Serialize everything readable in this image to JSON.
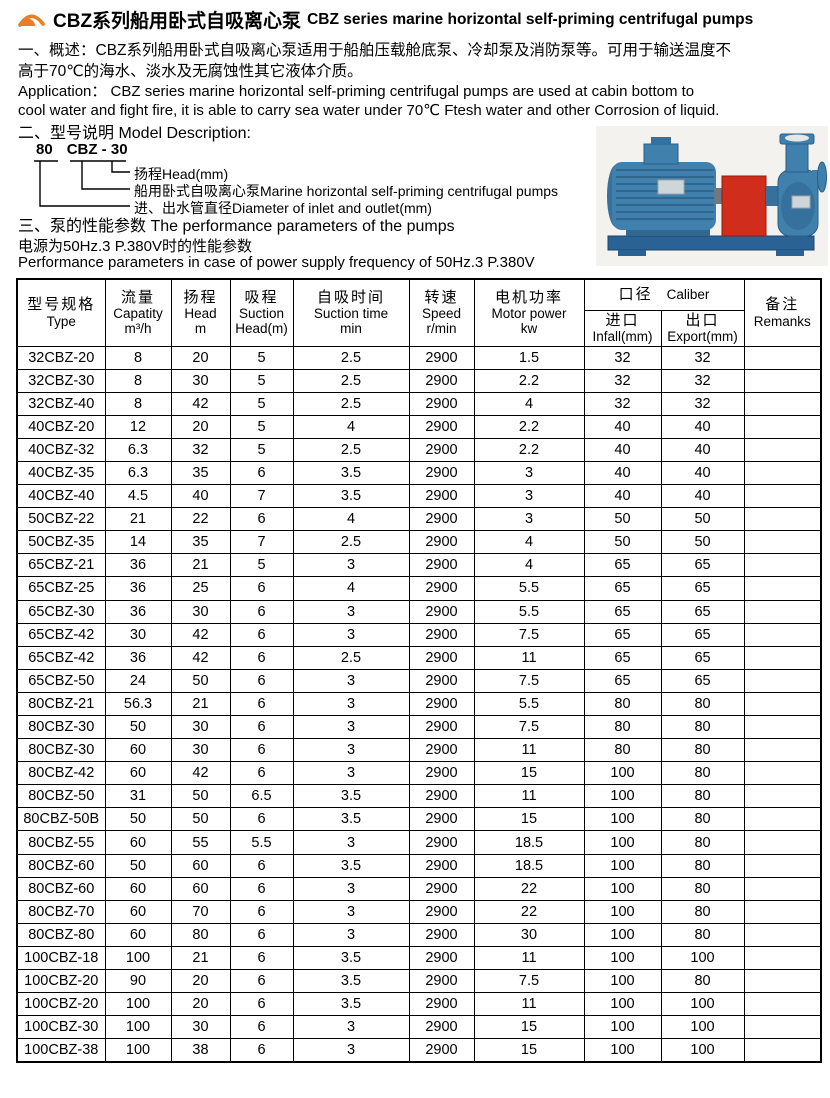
{
  "header": {
    "title_zh": "CBZ系列船用卧式自吸离心泵",
    "title_en": "CBZ series marine horizontal self-priming centrifugal pumps",
    "brand_color": "#e87e26"
  },
  "overview": {
    "zh": "一、概述：CBZ系列船用卧式自吸离心泵适用于船舶压载舱底泵、冷却泵及消防泵等。可用于输送温度不\n高于70℃的海水、淡水及无腐蚀性其它液体介质。",
    "en": "Application：  CBZ series marine horizontal self-priming centrifugal pumps are used at cabin bottom to\ncool water and fight fire, it is able to carry sea water under 70℃ Ftesh water and other Corrosion of liquid."
  },
  "model_description": {
    "heading": "二、型号说明  Model Description:",
    "code_part1": "80",
    "code_part2": "CBZ - 30",
    "labels": [
      "扬程Head(mm)",
      "船用卧式自吸离心泵Marine horizontal self-priming centrifugal pumps",
      "进、出水管直径Diameter of inlet and outlet(mm)"
    ]
  },
  "performance": {
    "heading": "三、泵的性能参数  The performance parameters of the pumps",
    "note_zh": "电源为50Hz.3 P.380V时的性能参数",
    "note_en": "Performance parameters in case of power supply frequency of 50Hz.3 P.380V"
  },
  "pump_photo": {
    "description": "blue horizontal centrifugal pump with red coupling guard",
    "body_color": "#3f80ad",
    "guard_color": "#d12d1c"
  },
  "table": {
    "headers": {
      "type": {
        "zh": "型号规格",
        "en": "Type"
      },
      "flow": {
        "zh": "流量",
        "en": "Capatity",
        "unit": "m³/h"
      },
      "head": {
        "zh": "扬程",
        "en": "Head",
        "unit": "m"
      },
      "suction": {
        "zh": "吸程",
        "en": "Suction",
        "unit": "Head(m)"
      },
      "time": {
        "zh": "自吸时间",
        "en": "Suction time",
        "unit": "min"
      },
      "speed": {
        "zh": "转速",
        "en": "Speed",
        "unit": "r/min"
      },
      "power": {
        "zh": "电机功率",
        "en": "Motor power",
        "unit": "kw"
      },
      "caliber": {
        "zh": "口径",
        "en": "Caliber"
      },
      "infall": {
        "zh": "进口",
        "en": "Infall(mm)"
      },
      "export": {
        "zh": "出口",
        "en": "Export(mm)"
      },
      "remarks": {
        "zh": "备注",
        "en": "Remanks"
      }
    },
    "rows": [
      [
        "32CBZ-20",
        "8",
        "20",
        "5",
        "2.5",
        "2900",
        "1.5",
        "32",
        "32",
        ""
      ],
      [
        "32CBZ-30",
        "8",
        "30",
        "5",
        "2.5",
        "2900",
        "2.2",
        "32",
        "32",
        ""
      ],
      [
        "32CBZ-40",
        "8",
        "42",
        "5",
        "2.5",
        "2900",
        "4",
        "32",
        "32",
        ""
      ],
      [
        "40CBZ-20",
        "12",
        "20",
        "5",
        "4",
        "2900",
        "2.2",
        "40",
        "40",
        ""
      ],
      [
        "40CBZ-32",
        "6.3",
        "32",
        "5",
        "2.5",
        "2900",
        "2.2",
        "40",
        "40",
        ""
      ],
      [
        "40CBZ-35",
        "6.3",
        "35",
        "6",
        "3.5",
        "2900",
        "3",
        "40",
        "40",
        ""
      ],
      [
        "40CBZ-40",
        "4.5",
        "40",
        "7",
        "3.5",
        "2900",
        "3",
        "40",
        "40",
        ""
      ],
      [
        "50CBZ-22",
        "21",
        "22",
        "6",
        "4",
        "2900",
        "3",
        "50",
        "50",
        ""
      ],
      [
        "50CBZ-35",
        "14",
        "35",
        "7",
        "2.5",
        "2900",
        "4",
        "50",
        "50",
        ""
      ],
      [
        "65CBZ-21",
        "36",
        "21",
        "5",
        "3",
        "2900",
        "4",
        "65",
        "65",
        ""
      ],
      [
        "65CBZ-25",
        "36",
        "25",
        "6",
        "4",
        "2900",
        "5.5",
        "65",
        "65",
        ""
      ],
      [
        "65CBZ-30",
        "36",
        "30",
        "6",
        "3",
        "2900",
        "5.5",
        "65",
        "65",
        ""
      ],
      [
        "65CBZ-42",
        "30",
        "42",
        "6",
        "3",
        "2900",
        "7.5",
        "65",
        "65",
        ""
      ],
      [
        "65CBZ-42",
        "36",
        "42",
        "6",
        "2.5",
        "2900",
        "11",
        "65",
        "65",
        ""
      ],
      [
        "65CBZ-50",
        "24",
        "50",
        "6",
        "3",
        "2900",
        "7.5",
        "65",
        "65",
        ""
      ],
      [
        "80CBZ-21",
        "56.3",
        "21",
        "6",
        "3",
        "2900",
        "5.5",
        "80",
        "80",
        ""
      ],
      [
        "80CBZ-30",
        "50",
        "30",
        "6",
        "3",
        "2900",
        "7.5",
        "80",
        "80",
        ""
      ],
      [
        "80CBZ-30",
        "60",
        "30",
        "6",
        "3",
        "2900",
        "11",
        "80",
        "80",
        ""
      ],
      [
        "80CBZ-42",
        "60",
        "42",
        "6",
        "3",
        "2900",
        "15",
        "100",
        "80",
        ""
      ],
      [
        "80CBZ-50",
        "31",
        "50",
        "6.5",
        "3.5",
        "2900",
        "11",
        "100",
        "80",
        ""
      ],
      [
        "80CBZ-50B",
        "50",
        "50",
        "6",
        "3.5",
        "2900",
        "15",
        "100",
        "80",
        ""
      ],
      [
        "80CBZ-55",
        "60",
        "55",
        "5.5",
        "3",
        "2900",
        "18.5",
        "100",
        "80",
        ""
      ],
      [
        "80CBZ-60",
        "50",
        "60",
        "6",
        "3.5",
        "2900",
        "18.5",
        "100",
        "80",
        ""
      ],
      [
        "80CBZ-60",
        "60",
        "60",
        "6",
        "3",
        "2900",
        "22",
        "100",
        "80",
        ""
      ],
      [
        "80CBZ-70",
        "60",
        "70",
        "6",
        "3",
        "2900",
        "22",
        "100",
        "80",
        ""
      ],
      [
        "80CBZ-80",
        "60",
        "80",
        "6",
        "3",
        "2900",
        "30",
        "100",
        "80",
        ""
      ],
      [
        "100CBZ-18",
        "100",
        "21",
        "6",
        "3.5",
        "2900",
        "11",
        "100",
        "100",
        ""
      ],
      [
        "100CBZ-20",
        "90",
        "20",
        "6",
        "3.5",
        "2900",
        "7.5",
        "100",
        "80",
        ""
      ],
      [
        "100CBZ-20",
        "100",
        "20",
        "6",
        "3.5",
        "2900",
        "11",
        "100",
        "100",
        ""
      ],
      [
        "100CBZ-30",
        "100",
        "30",
        "6",
        "3",
        "2900",
        "15",
        "100",
        "100",
        ""
      ],
      [
        "100CBZ-38",
        "100",
        "38",
        "6",
        "3",
        "2900",
        "15",
        "100",
        "100",
        ""
      ]
    ]
  }
}
